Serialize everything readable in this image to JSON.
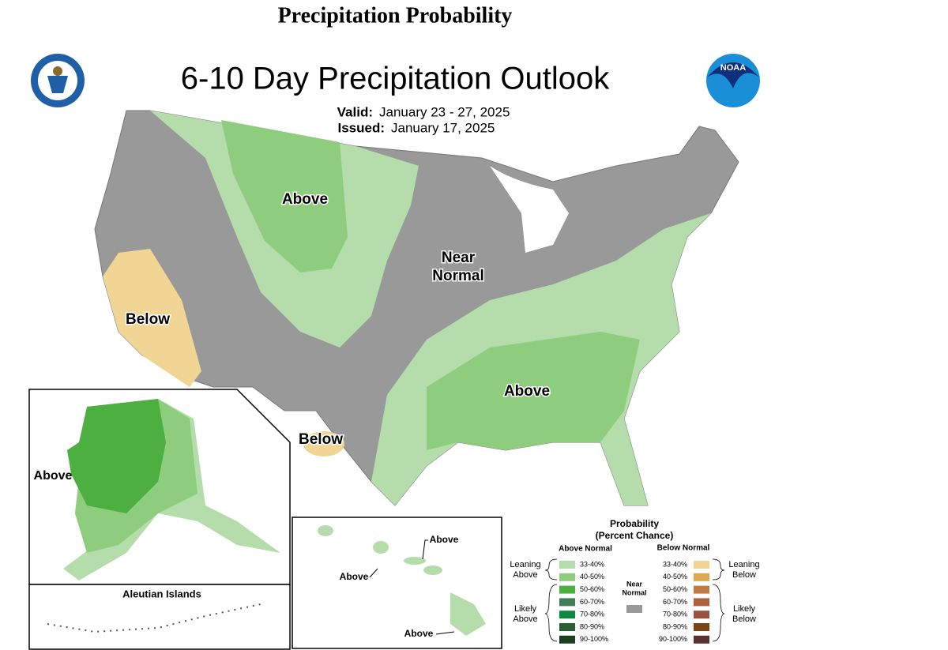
{
  "header": {
    "title": "Precipitation Probability"
  },
  "map": {
    "title": "6-10 Day Precipitation Outlook",
    "valid_label": "Valid:",
    "valid": "January 23 - 27, 2025",
    "issued_label": "Issued:",
    "issued": "January 17, 2025",
    "regions": [
      "Above",
      "Below",
      "Near",
      "Normal",
      "Below",
      "Above"
    ],
    "alaska": "Above",
    "aleutian": "Aleutian Islands",
    "hawaii": [
      "Above",
      "Above",
      "Above"
    ]
  },
  "legend": {
    "title": "Probability",
    "subtitle": "(Percent Chance)",
    "above_header": "Above Normal",
    "below_header": "Below Normal",
    "leaning_above": [
      "Leaning",
      "Above"
    ],
    "likely_above": [
      "Likely",
      "Above"
    ],
    "leaning_below": [
      "Leaning",
      "Below"
    ],
    "likely_below": [
      "Likely",
      "Below"
    ],
    "near_normal": [
      "Near",
      "Normal"
    ],
    "near_color": "#999999",
    "above_bins": [
      {
        "label": "33-40%",
        "color": "#b5dcab"
      },
      {
        "label": "40-50%",
        "color": "#8fcd7e"
      },
      {
        "label": "50-60%",
        "color": "#4daf3f"
      },
      {
        "label": "60-70%",
        "color": "#3e7f5a"
      },
      {
        "label": "70-80%",
        "color": "#0b8a3e"
      },
      {
        "label": "80-90%",
        "color": "#285f33"
      },
      {
        "label": "90-100%",
        "color": "#1d3f1d"
      }
    ],
    "below_bins": [
      {
        "label": "33-40%",
        "color": "#f0d594"
      },
      {
        "label": "40-50%",
        "color": "#dba94f"
      },
      {
        "label": "50-60%",
        "color": "#c27a45"
      },
      {
        "label": "60-70%",
        "color": "#b0603e"
      },
      {
        "label": "70-80%",
        "color": "#9b4f3d"
      },
      {
        "label": "80-90%",
        "color": "#7c4413"
      },
      {
        "label": "90-100%",
        "color": "#5a3030"
      }
    ]
  }
}
